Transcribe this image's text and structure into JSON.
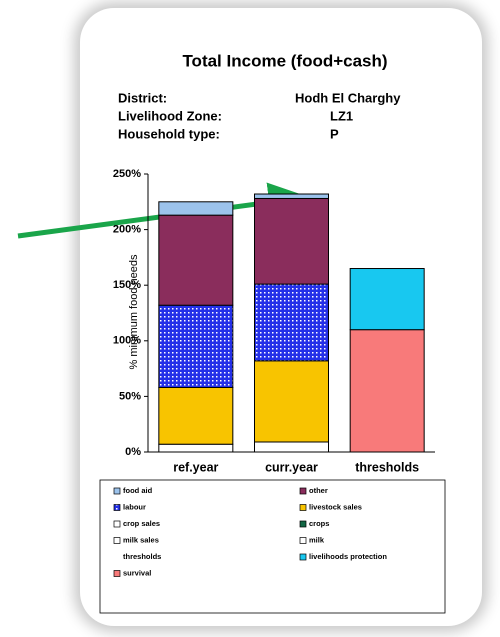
{
  "chart_data": {
    "type": "stacked_bar",
    "title": "Total Income (food+cash)",
    "info": [
      {
        "label": "District:",
        "value": "Hodh  El Charghy"
      },
      {
        "label": "Livelihood Zone:",
        "value": "LZ1"
      },
      {
        "label": "Household type:",
        "value": "P"
      }
    ],
    "y_label": "% minimum food needs",
    "categories": [
      "ref.year",
      "curr.year",
      "thresholds"
    ],
    "ylim": [
      0,
      250
    ],
    "yticks": [
      {
        "value": 0,
        "label": "0%"
      },
      {
        "value": 50,
        "label": "50%"
      },
      {
        "value": 100,
        "label": "100%"
      },
      {
        "value": 150,
        "label": "150%"
      },
      {
        "value": 200,
        "label": "200%"
      },
      {
        "value": 250,
        "label": "250%"
      }
    ],
    "series": [
      {
        "name": "food aid",
        "color": "#9cc3ec",
        "values": [
          12,
          4,
          null
        ]
      },
      {
        "name": "other",
        "color": "#8a2d5c",
        "values": [
          81,
          77,
          null
        ]
      },
      {
        "name": "labour",
        "color": "#2430e8",
        "pattern": "dots",
        "values": [
          74,
          69,
          null
        ]
      },
      {
        "name": "livestock sales",
        "color": "#f8c400",
        "values": [
          51,
          73,
          null
        ]
      },
      {
        "name": "crop sales",
        "color": "#ffffff",
        "values": [
          0,
          0,
          null
        ]
      },
      {
        "name": "crops",
        "color": "#116644",
        "values": [
          0,
          0,
          null
        ]
      },
      {
        "name": "milk sales",
        "color": "#ffffff",
        "values": [
          0,
          0,
          null
        ]
      },
      {
        "name": "milk",
        "color": "#ffffff",
        "values": [
          7,
          9,
          null
        ]
      },
      {
        "name": "thresholds",
        "color": "none",
        "values": [
          null,
          null,
          null
        ]
      },
      {
        "name": "livelihoods protection",
        "color": "#18c8f0",
        "values": [
          null,
          null,
          55
        ]
      },
      {
        "name": "survival",
        "color": "#f87a7a",
        "values": [
          null,
          null,
          110
        ]
      }
    ]
  }
}
